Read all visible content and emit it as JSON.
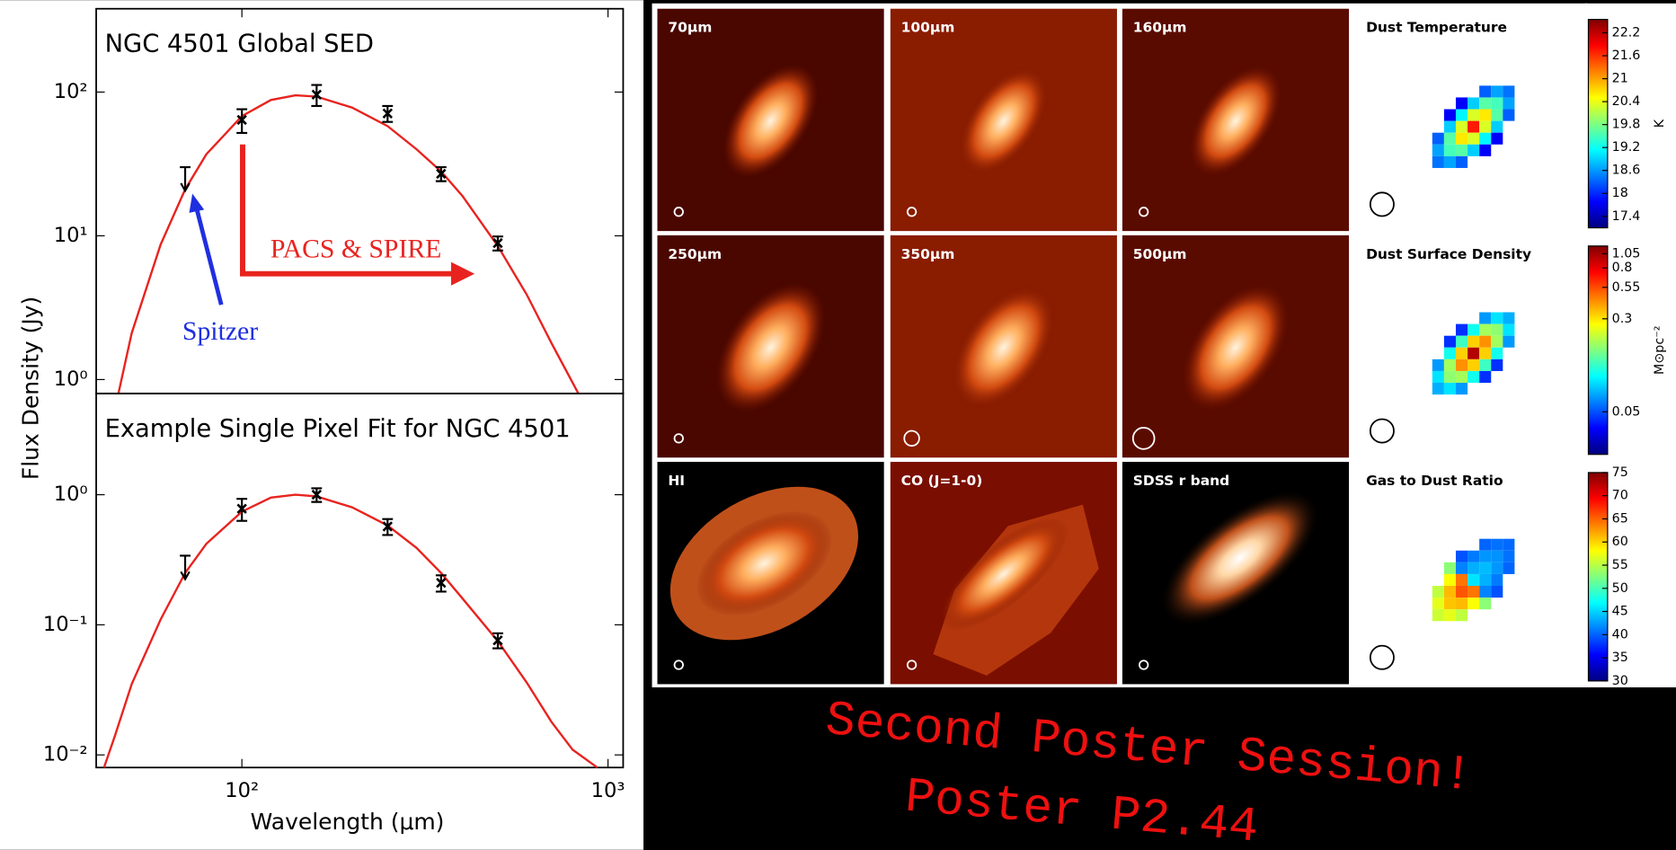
{
  "chart_data": [
    {
      "type": "sed",
      "title": "NGC 4501 Global SED",
      "ylabel": "Flux Density (Jy)",
      "xlog": true,
      "ylog": true,
      "xlim": [
        40,
        1100
      ],
      "ylim": [
        0.8,
        380
      ],
      "yticks": [
        {
          "value": 1,
          "label": "10⁰"
        },
        {
          "value": 10,
          "label": "10¹"
        },
        {
          "value": 100,
          "label": "10²"
        }
      ],
      "model": {
        "color": "#e8231f",
        "x": [
          46,
          50,
          60,
          70,
          80,
          100,
          120,
          140,
          160,
          200,
          250,
          300,
          350,
          400,
          500,
          600,
          700,
          830
        ],
        "values": [
          0.8,
          2.1,
          8.7,
          21,
          37,
          68,
          88,
          95,
          93,
          78,
          58,
          40,
          28,
          19,
          8.5,
          3.9,
          1.8,
          0.8
        ]
      },
      "points": {
        "color": "#000000",
        "x": [
          70,
          100,
          160,
          250,
          350,
          500
        ],
        "values": [
          30,
          64,
          96,
          71,
          27,
          8.9
        ],
        "errors": [
          null,
          12,
          16,
          9,
          3,
          1
        ],
        "upper_limit": [
          true,
          false,
          false,
          false,
          false,
          false
        ]
      },
      "annotations": [
        {
          "text": "Spitzer",
          "color": "#1f2fe0"
        },
        {
          "text": "PACS & SPIRE",
          "color": "#e8231f"
        }
      ]
    },
    {
      "type": "sed",
      "title": "Example Single Pixel Fit for NGC 4501",
      "xlabel": "Wavelength (μm)",
      "xlog": true,
      "ylog": true,
      "xlim": [
        40,
        1100
      ],
      "ylim": [
        0.008,
        6
      ],
      "xticks": [
        {
          "value": 100,
          "label": "10²"
        },
        {
          "value": 1000,
          "label": "10³"
        }
      ],
      "yticks": [
        {
          "value": 0.01,
          "label": "10⁻²"
        },
        {
          "value": 0.1,
          "label": "10⁻¹"
        },
        {
          "value": 1,
          "label": "10⁰"
        }
      ],
      "model": {
        "color": "#e8231f",
        "x": [
          42,
          45,
          50,
          60,
          70,
          80,
          100,
          120,
          140,
          160,
          200,
          250,
          300,
          350,
          400,
          500,
          600,
          700,
          800,
          935
        ],
        "values": [
          0.008,
          0.014,
          0.035,
          0.11,
          0.25,
          0.42,
          0.74,
          0.95,
          1.0,
          0.97,
          0.8,
          0.58,
          0.39,
          0.25,
          0.16,
          0.075,
          0.036,
          0.018,
          0.011,
          0.008
        ]
      },
      "points": {
        "color": "#000000",
        "x": [
          70,
          100,
          160,
          250,
          350,
          500
        ],
        "values": [
          0.34,
          0.78,
          1.0,
          0.57,
          0.21,
          0.076
        ],
        "errors": [
          null,
          0.15,
          0.12,
          0.08,
          0.03,
          0.01
        ],
        "upper_limit": [
          true,
          false,
          false,
          false,
          false,
          false
        ]
      }
    }
  ],
  "panels": {
    "labels": [
      [
        "70μm",
        "100μm",
        "160μm",
        "Dust Temperature"
      ],
      [
        "250μm",
        "350μm",
        "500μm",
        "Dust Surface Density"
      ],
      [
        "HI",
        "CO (J=1-0)",
        "SDSS r band",
        "Gas to Dust Ratio"
      ]
    ],
    "colorbars": [
      {
        "lim": [
          17.1,
          22.55
        ],
        "ticks": [
          17.4,
          18.0,
          18.6,
          19.2,
          19.8,
          20.4,
          21.0,
          21.6,
          22.2
        ],
        "unit": "K"
      },
      {
        "log": true,
        "lim": [
          0.022,
          1.22
        ],
        "ticks": [
          0.05,
          0.3,
          0.55,
          0.8,
          1.05
        ],
        "unit": "M⊙pc⁻²"
      },
      {
        "lim": [
          30,
          75
        ],
        "ticks": [
          30,
          35,
          40,
          45,
          50,
          55,
          60,
          65,
          70,
          75
        ]
      }
    ]
  },
  "banner": [
    "Second Poster Session!",
    "Poster P2.44"
  ]
}
